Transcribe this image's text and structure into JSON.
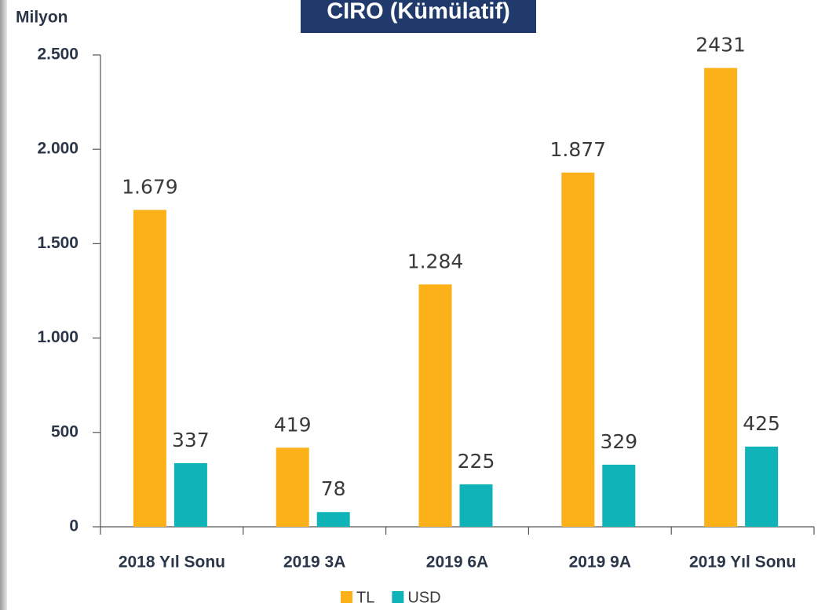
{
  "chart_data": {
    "type": "bar",
    "title": "CIRO (Kümülatif)",
    "y_label": "Milyon",
    "categories": [
      "2018 Yıl Sonu",
      "2019 3A",
      "2019 6A",
      "2019 9A",
      "2019 Yıl Sonu"
    ],
    "series": [
      {
        "name": "TL",
        "color": "#fbb117",
        "values": [
          1679,
          419,
          1284,
          1877,
          2431
        ],
        "value_labels": [
          "1.679",
          "419",
          "1.284",
          "1.877",
          "2431"
        ]
      },
      {
        "name": "USD",
        "color": "#10b3b7",
        "values": [
          337,
          78,
          225,
          329,
          425
        ]
      }
    ],
    "ylim": [
      0,
      2500
    ],
    "yticks": [
      0,
      500,
      {
        "value": 1000,
        "label": "1.000"
      },
      {
        "value": 1500,
        "label": "1.500"
      },
      {
        "value": 2000,
        "label": "2.000"
      },
      {
        "value": 2500,
        "label": "2.500"
      }
    ],
    "legend": "bottom"
  }
}
